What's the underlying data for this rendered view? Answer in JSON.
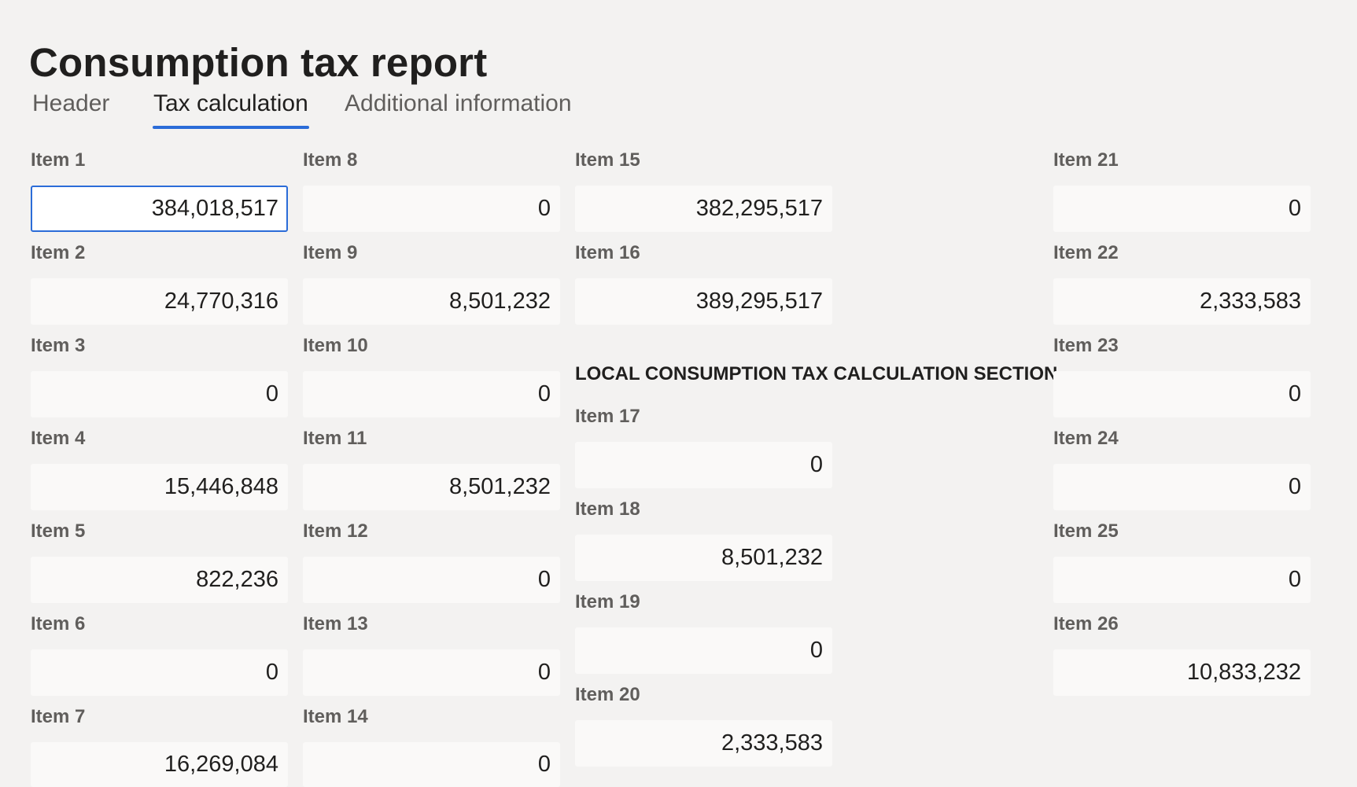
{
  "page": {
    "title": "Consumption tax report"
  },
  "tabs": [
    {
      "label": "Header"
    },
    {
      "label": "Tax calculation"
    },
    {
      "label": "Additional information"
    }
  ],
  "active_tab": "Tax calculation",
  "local_section_heading": "LOCAL CONSUMPTION TAX CALCULATION SECTION",
  "accent_color": "#2b6cd8",
  "items": [
    {
      "label": "Item 1",
      "value": "384,018,517"
    },
    {
      "label": "Item 2",
      "value": "24,770,316"
    },
    {
      "label": "Item 3",
      "value": "0"
    },
    {
      "label": "Item 4",
      "value": "15,446,848"
    },
    {
      "label": "Item 5",
      "value": "822,236"
    },
    {
      "label": "Item 6",
      "value": "0"
    },
    {
      "label": "Item 7",
      "value": "16,269,084"
    },
    {
      "label": "Item 8",
      "value": "0"
    },
    {
      "label": "Item 9",
      "value": "8,501,232"
    },
    {
      "label": "Item 10",
      "value": "0"
    },
    {
      "label": "Item 11",
      "value": "8,501,232"
    },
    {
      "label": "Item 12",
      "value": "0"
    },
    {
      "label": "Item 13",
      "value": "0"
    },
    {
      "label": "Item 14",
      "value": "0"
    },
    {
      "label": "Item 15",
      "value": "382,295,517"
    },
    {
      "label": "Item 16",
      "value": "389,295,517"
    },
    {
      "label": "Item 17",
      "value": "0"
    },
    {
      "label": "Item 18",
      "value": "8,501,232"
    },
    {
      "label": "Item 19",
      "value": "0"
    },
    {
      "label": "Item 20",
      "value": "2,333,583"
    },
    {
      "label": "Item 21",
      "value": "0"
    },
    {
      "label": "Item 22",
      "value": "2,333,583"
    },
    {
      "label": "Item 23",
      "value": "0"
    },
    {
      "label": "Item 24",
      "value": "0"
    },
    {
      "label": "Item 25",
      "value": "0"
    },
    {
      "label": "Item 26",
      "value": "10,833,232"
    }
  ]
}
